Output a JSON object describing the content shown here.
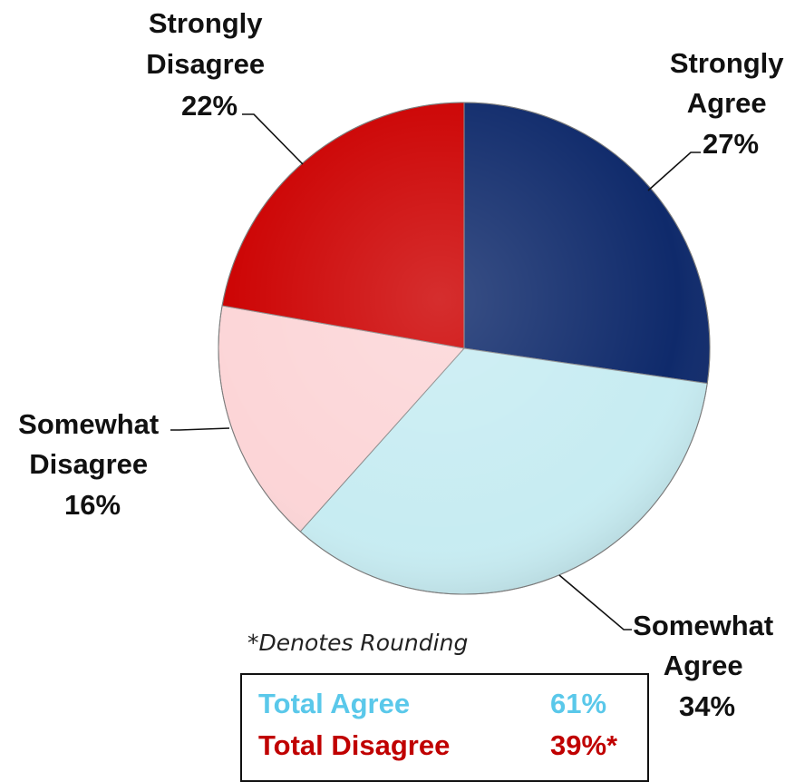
{
  "chart_data": {
    "type": "pie",
    "slices": [
      {
        "label_lines": [
          "Strongly",
          "Agree"
        ],
        "percent_label": "27%",
        "value": 27,
        "color": "#0f2a6b"
      },
      {
        "label_lines": [
          "Somewhat",
          "Agree"
        ],
        "percent_label": "34%",
        "value": 34,
        "color": "#c7ecf2"
      },
      {
        "label_lines": [
          "Somewhat",
          "Disagree"
        ],
        "percent_label": "16%",
        "value": 16,
        "color": "#fcd5d7"
      },
      {
        "label_lines": [
          "Strongly",
          "Disagree"
        ],
        "percent_label": "22%",
        "value": 22,
        "color": "#cc0000"
      }
    ],
    "start_angle_deg": 0,
    "direction": "clockwise"
  },
  "footnote": "*Denotes Rounding",
  "totals": {
    "agree": {
      "label": "Total Agree",
      "value": "61%",
      "color": "#5ac8ea"
    },
    "disagree": {
      "label": "Total Disagree",
      "value": "39%*",
      "color": "#c00000"
    }
  }
}
